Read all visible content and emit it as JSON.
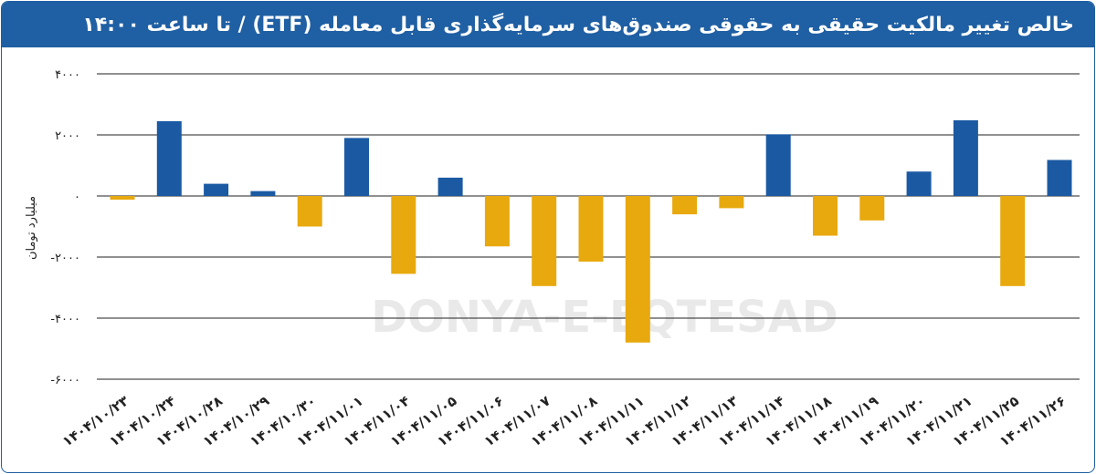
{
  "header": {
    "title": "خالص تغییر مالکیت حقیقی به حقوقی صندوق‌های سرمایه‌گذاری قابل معامله (ETF)  / تا ساعت ۱۴:۰۰"
  },
  "watermark": {
    "text": "DONYA-E-EQTESAD"
  },
  "colors": {
    "header": "#1f5fa3",
    "positive": "#1b5aa3",
    "negative": "#e8a90e",
    "grid": "#222222"
  },
  "chart_data": {
    "type": "bar",
    "title": "خالص تغییر مالکیت حقیقی به حقوقی صندوق‌های سرمایه‌گذاری قابل معامله (ETF)  / تا ساعت ۱۴:۰۰",
    "xlabel": "",
    "ylabel": "میلیارد تومان",
    "ylim": [
      -6000,
      4000
    ],
    "yticks": [
      4000,
      2000,
      0,
      -2000,
      -4000,
      -6000
    ],
    "ytick_labels": [
      "۴۰۰۰",
      "۲۰۰۰",
      "۰",
      "-۲۰۰۰",
      "-۴۰۰۰",
      "-۶۰۰۰"
    ],
    "grid": true,
    "categories": [
      "۱۴۰۴/۱۰/۲۳",
      "۱۴۰۴/۱۰/۲۴",
      "۱۴۰۴/۱۰/۲۸",
      "۱۴۰۴/۱۰/۲۹",
      "۱۴۰۴/۱۰/۳۰",
      "۱۴۰۴/۱۱/۰۱",
      "۱۴۰۴/۱۱/۰۴",
      "۱۴۰۴/۱۱/۰۵",
      "۱۴۰۴/۱۱/۰۶",
      "۱۴۰۴/۱۱/۰۷",
      "۱۴۰۴/۱۱/۰۸",
      "۱۴۰۴/۱۱/۱۱",
      "۱۴۰۴/۱۱/۱۲",
      "۱۴۰۴/۱۱/۱۳",
      "۱۴۰۴/۱۱/۱۴",
      "۱۴۰۴/۱۱/۱۸",
      "۱۴۰۴/۱۱/۱۹",
      "۱۴۰۴/۱۱/۲۰",
      "۱۴۰۴/۱۱/۲۱",
      "۱۴۰۴/۱۱/۲۵",
      "۱۴۰۴/۱۱/۲۶"
    ],
    "values": [
      -120,
      2450,
      400,
      160,
      -1000,
      1900,
      -2550,
      600,
      -1650,
      -2950,
      -2150,
      -4800,
      -600,
      -400,
      2020,
      -1300,
      -800,
      800,
      2480,
      -2950,
      1180
    ]
  }
}
